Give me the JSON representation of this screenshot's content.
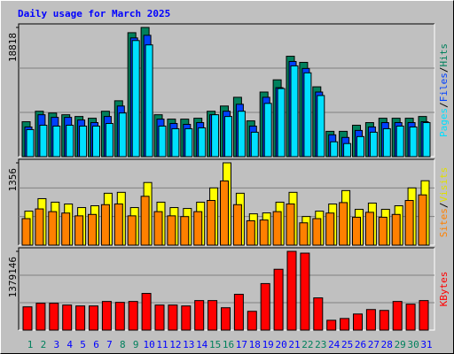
{
  "chart_data": {
    "type": "bar",
    "title": "Daily usage for March 2025",
    "categories": [
      "1",
      "2",
      "3",
      "4",
      "5",
      "6",
      "7",
      "8",
      "9",
      "10",
      "11",
      "12",
      "13",
      "14",
      "15",
      "16",
      "17",
      "18",
      "19",
      "20",
      "21",
      "22",
      "23",
      "24",
      "25",
      "26",
      "27",
      "28",
      "29",
      "30",
      "31"
    ],
    "category_colors": [
      "#00805c",
      "#00805c",
      "#0000ff",
      "#0000ff",
      "#0000ff",
      "#0000ff",
      "#0000ff",
      "#00805c",
      "#00805c",
      "#0000ff",
      "#0000ff",
      "#0000ff",
      "#0000ff",
      "#0000ff",
      "#00805c",
      "#00805c",
      "#0000ff",
      "#0000ff",
      "#0000ff",
      "#0000ff",
      "#0000ff",
      "#00805c",
      "#00805c",
      "#0000ff",
      "#0000ff",
      "#0000ff",
      "#0000ff",
      "#0000ff",
      "#00805c",
      "#00805c",
      "#0000ff"
    ],
    "legend_separator": "/",
    "panels": [
      {
        "ylim": [
          0,
          18818
        ],
        "yticks": [
          18818
        ],
        "series": [
          {
            "name": "Hits",
            "color": "#00805c",
            "values": [
              5086,
              6612,
              6358,
              6103,
              5849,
              5595,
              6612,
              8138,
              18055,
              18818,
              6103,
              5467,
              5467,
              5595,
              6612,
              7375,
              8646,
              5213,
              9409,
              11189,
              14622,
              13732,
              10172,
              3687,
              3687,
              4577,
              4959,
              5595,
              5595,
              5595,
              5849
            ]
          },
          {
            "name": "Files",
            "color": "#0040ff",
            "values": [
              4323,
              6103,
              5722,
              5722,
              5340,
              4959,
              5849,
              7375,
              17292,
              17674,
              5467,
              4832,
              4705,
              4959,
              6103,
              6612,
              7629,
              4450,
              8646,
              10045,
              13859,
              12842,
              9409,
              3179,
              2797,
              3815,
              4323,
              4959,
              4959,
              4959,
              5086
            ]
          },
          {
            "name": "Pages",
            "color": "#00e0ff",
            "values": [
              3942,
              4577,
              4450,
              4577,
              4450,
              4450,
              4832,
              6358,
              16911,
              16275,
              4450,
              4069,
              4069,
              4196,
              6103,
              5849,
              6612,
              3560,
              7756,
              9918,
              13224,
              12207,
              8901,
              2162,
              1907,
              2924,
              3560,
              4069,
              4450,
              4323,
              4959
            ]
          }
        ]
      },
      {
        "ylim": [
          0,
          1356
        ],
        "yticks": [
          1356
        ],
        "series": [
          {
            "name": "Visits",
            "color": "#ffff00",
            "values": [
              560,
              766,
              708,
              678,
              619,
              649,
              855,
              870,
              619,
              1032,
              708,
              619,
              604,
              708,
              943,
              1356,
              855,
              516,
              531,
              708,
              870,
              472,
              560,
              678,
              899,
              590,
              693,
              590,
              649,
              943,
              1061
            ]
          },
          {
            "name": "Sites",
            "color": "#ff8000",
            "values": [
              437,
              597,
              552,
              529,
              483,
              506,
              667,
              679,
              483,
              805,
              552,
              483,
              471,
              552,
              736,
              1058,
              667,
              402,
              414,
              552,
              679,
              368,
              437,
              529,
              701,
              460,
              541,
              460,
              506,
              736,
              828
            ]
          }
        ]
      },
      {
        "ylim": [
          0,
          1379146
        ],
        "yticks": [
          1379146
        ],
        "series": [
          {
            "name": "KBytes",
            "color": "#ff0000",
            "values": [
              407472,
              470160,
              470160,
              438816,
              423144,
              423144,
              501504,
              485832,
              501504,
              642552,
              438816,
              438816,
              423144,
              517176,
              517176,
              391800,
              626880,
              329112,
              814944,
              1065696,
              1379146,
              1347792,
              564192,
              172392,
              203736,
              282096,
              360456,
              344784,
              501504,
              454488,
              517176
            ]
          }
        ]
      }
    ]
  }
}
